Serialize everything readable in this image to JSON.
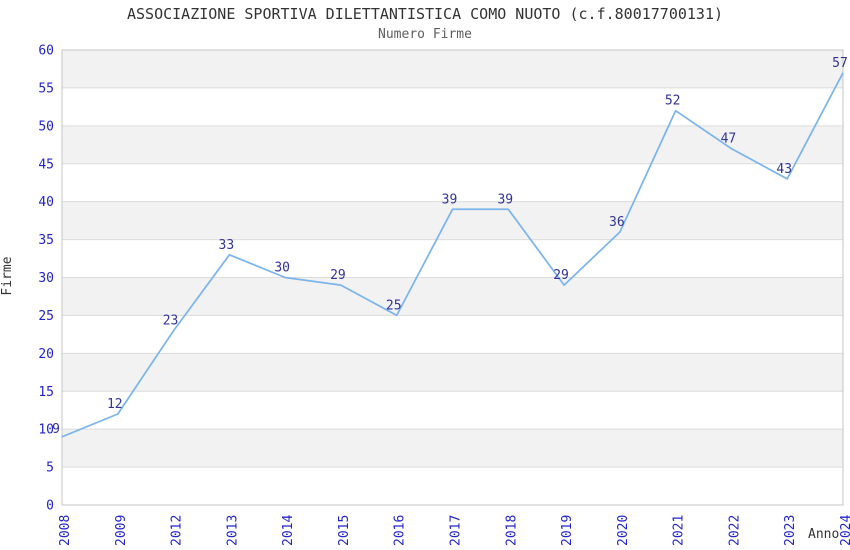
{
  "chart_data": {
    "type": "line",
    "title": "ASSOCIAZIONE SPORTIVA DILETTANTISTICA COMO NUOTO (c.f.80017700131)",
    "subtitle": "Numero Firme",
    "xlabel": "Anno",
    "ylabel": "Firme",
    "categories": [
      "2008",
      "2009",
      "2012",
      "2013",
      "2014",
      "2015",
      "2016",
      "2017",
      "2018",
      "2019",
      "2020",
      "2021",
      "2022",
      "2023",
      "2024"
    ],
    "values": [
      9,
      12,
      23,
      33,
      30,
      29,
      25,
      39,
      39,
      29,
      36,
      52,
      47,
      43,
      57
    ],
    "ylim": [
      0,
      60
    ],
    "ytick_step": 5,
    "yticks": [
      0,
      5,
      10,
      15,
      20,
      25,
      30,
      35,
      40,
      45,
      50,
      55,
      60
    ],
    "grid": "horizontal-bands-alternating",
    "legend": "none",
    "colors": {
      "line": "#7cb5ec",
      "data_label": "#333399",
      "tick_label": "#2424cc",
      "title": "#333333",
      "subtitle": "#5e5e5e",
      "band_gray": "#f2f2f2",
      "band_white": "#ffffff",
      "gridline": "#dcdcdc",
      "plot_border": "#c6c6c6",
      "background": "#ffffff"
    }
  }
}
